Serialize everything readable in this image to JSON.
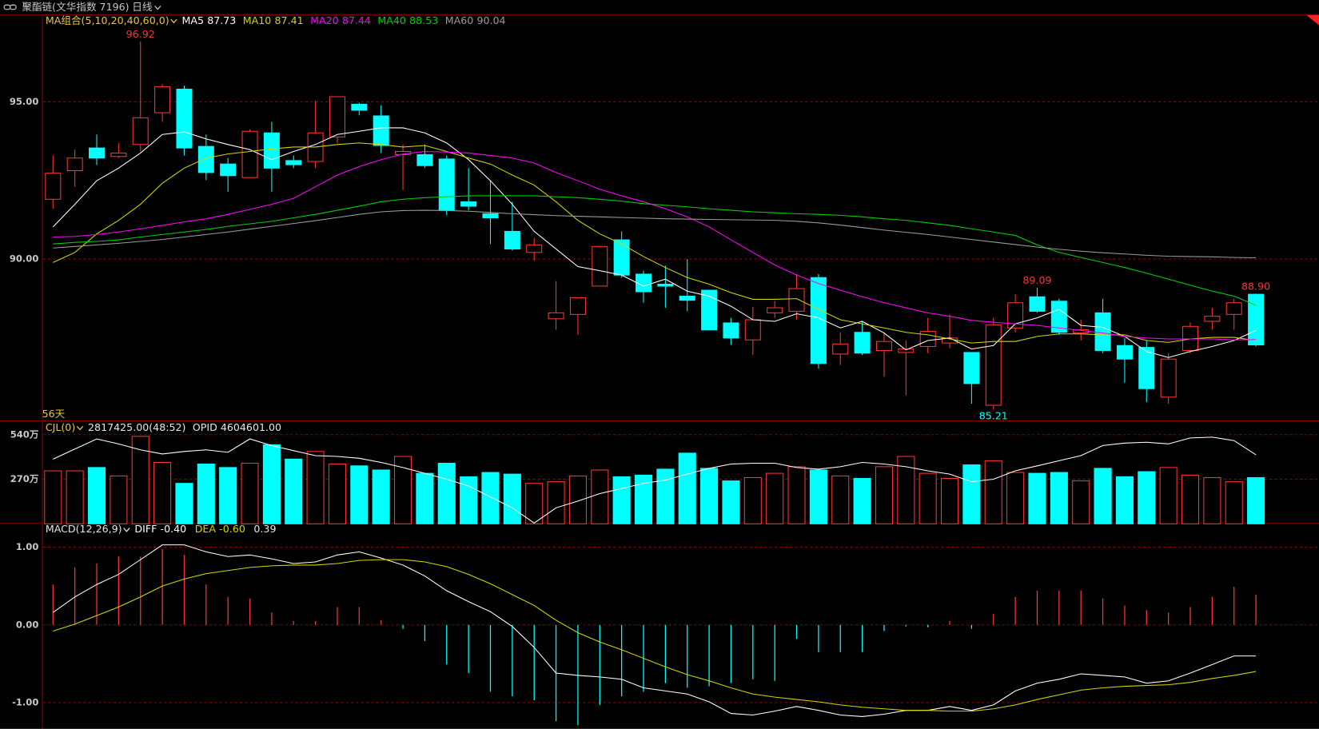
{
  "header": {
    "title": "聚酯链(文华指数 7196)",
    "period": "日线"
  },
  "chart_data": [
    {
      "type": "candlestick",
      "indicator_label": "MA组合(5,10,20,40,60,0)",
      "span_label": "56天",
      "up_color": "#ff3232",
      "down_color": "#00ffff",
      "open": [
        91.9,
        92.81,
        93.53,
        93.26,
        93.64,
        94.65,
        95.4,
        93.58,
        93.02,
        92.59,
        94.01,
        93.13,
        93.1,
        93.88,
        94.92,
        94.55,
        93.32,
        93.32,
        93.18,
        91.82,
        91.44,
        90.88,
        90.21,
        88.1,
        88.24,
        89.14,
        90.61,
        89.52,
        89.2,
        88.82,
        89.01,
        87.97,
        87.43,
        88.29,
        88.34,
        89.41,
        86.98,
        87.67,
        87.09,
        87.03,
        87.22,
        87.33,
        87.03,
        85.35,
        87.81,
        88.8,
        88.66,
        87.65,
        88.29,
        87.25,
        87.19,
        85.61,
        87.09,
        88.02,
        88.24,
        88.88
      ],
      "high": [
        93.29,
        93.48,
        93.96,
        93.69,
        96.92,
        95.56,
        95.51,
        93.96,
        93.21,
        94.12,
        94.36,
        93.29,
        95.03,
        95.16,
        94.97,
        94.89,
        93.64,
        93.64,
        93.29,
        92.89,
        92.49,
        91.82,
        90.67,
        89.3,
        88.77,
        90.4,
        90.88,
        89.63,
        89.79,
        90.0,
        89.01,
        88.13,
        88.48,
        88.66,
        89.52,
        89.52,
        87.67,
        88.02,
        87.67,
        87.41,
        88.13,
        88.24,
        87.03,
        88.13,
        88.88,
        89.09,
        88.74,
        88.07,
        88.74,
        87.49,
        87.41,
        87.01,
        87.99,
        88.45,
        88.74,
        88.9
      ],
      "low": [
        91.6,
        92.3,
        92.99,
        93.21,
        93.42,
        94.36,
        93.29,
        92.51,
        92.14,
        92.59,
        92.14,
        92.89,
        92.89,
        93.69,
        94.57,
        93.37,
        92.19,
        92.89,
        91.39,
        91.55,
        90.48,
        90.27,
        89.95,
        87.75,
        87.59,
        89.14,
        89.41,
        88.61,
        88.45,
        88.34,
        87.75,
        87.27,
        86.95,
        88.13,
        88.07,
        86.52,
        86.63,
        86.95,
        86.26,
        85.67,
        87.01,
        87.17,
        85.4,
        85.21,
        87.67,
        88.29,
        87.59,
        87.41,
        87.01,
        86.07,
        85.45,
        85.4,
        87.01,
        87.75,
        87.75,
        87.22
      ],
      "close": [
        92.73,
        93.21,
        93.21,
        93.37,
        94.49,
        95.48,
        93.53,
        92.75,
        92.65,
        94.06,
        92.89,
        93.0,
        94.01,
        95.16,
        94.73,
        93.61,
        93.42,
        92.97,
        91.55,
        91.68,
        91.31,
        90.32,
        90.45,
        88.29,
        88.77,
        90.4,
        89.49,
        88.96,
        89.14,
        88.69,
        87.75,
        87.49,
        88.07,
        88.45,
        89.06,
        86.68,
        87.3,
        87.01,
        87.38,
        87.14,
        87.7,
        87.49,
        86.04,
        87.91,
        88.61,
        88.34,
        87.67,
        87.75,
        87.09,
        86.82,
        85.88,
        86.82,
        87.86,
        88.18,
        88.61,
        87.27
      ],
      "high_labels": [
        null,
        null,
        null,
        null,
        "96.92",
        null,
        null,
        null,
        null,
        null,
        null,
        null,
        null,
        null,
        null,
        null,
        null,
        null,
        null,
        null,
        null,
        null,
        null,
        null,
        null,
        null,
        null,
        null,
        null,
        null,
        null,
        null,
        null,
        null,
        null,
        null,
        null,
        null,
        null,
        null,
        null,
        null,
        null,
        null,
        null,
        "89.09",
        null,
        null,
        null,
        null,
        null,
        null,
        null,
        null,
        null,
        "88.90"
      ],
      "low_labels": [
        null,
        null,
        null,
        null,
        null,
        null,
        null,
        null,
        null,
        null,
        null,
        null,
        null,
        null,
        null,
        null,
        null,
        null,
        null,
        null,
        null,
        null,
        null,
        null,
        null,
        null,
        null,
        null,
        null,
        null,
        null,
        null,
        null,
        null,
        null,
        null,
        null,
        null,
        null,
        null,
        null,
        null,
        null,
        "85.21",
        null,
        null,
        null,
        null,
        null,
        null,
        null,
        null,
        null,
        null,
        null,
        null
      ],
      "series": [
        {
          "name": "MA5",
          "color": "#ffffff",
          "values": [
            91.02,
            91.74,
            92.49,
            92.89,
            93.37,
            93.96,
            94.04,
            93.82,
            93.64,
            93.48,
            93.16,
            93.42,
            93.64,
            93.96,
            94.06,
            94.17,
            94.17,
            94.01,
            93.69,
            93.16,
            92.49,
            91.74,
            90.88,
            90.32,
            89.76,
            89.63,
            89.49,
            89.14,
            89.36,
            88.98,
            88.82,
            88.5,
            88.07,
            88.02,
            88.26,
            88.13,
            87.81,
            88.02,
            87.65,
            87.11,
            87.41,
            87.49,
            87.14,
            87.25,
            87.94,
            88.13,
            88.4,
            87.89,
            87.83,
            87.54,
            87.06,
            86.87,
            87.06,
            87.22,
            87.41,
            87.73
          ]
        },
        {
          "name": "MA10",
          "color": "#d4d400",
          "values": [
            89.89,
            90.21,
            90.8,
            91.23,
            91.74,
            92.41,
            92.89,
            93.21,
            93.34,
            93.42,
            93.5,
            93.56,
            93.56,
            93.64,
            93.69,
            93.64,
            93.56,
            93.61,
            93.42,
            93.21,
            93.02,
            92.67,
            92.35,
            91.82,
            91.23,
            90.8,
            90.48,
            90.08,
            89.73,
            89.41,
            89.2,
            88.93,
            88.72,
            88.72,
            88.74,
            88.4,
            88.07,
            87.94,
            87.81,
            87.67,
            87.59,
            87.46,
            87.33,
            87.38,
            87.38,
            87.54,
            87.62,
            87.62,
            87.59,
            87.59,
            87.41,
            87.35,
            87.46,
            87.51,
            87.51,
            87.41
          ]
        },
        {
          "name": "MA20",
          "color": "#ff00ff",
          "values": [
            90.7,
            90.72,
            90.78,
            90.86,
            90.96,
            91.07,
            91.18,
            91.28,
            91.42,
            91.58,
            91.74,
            91.93,
            92.3,
            92.67,
            92.94,
            93.16,
            93.34,
            93.42,
            93.4,
            93.37,
            93.29,
            93.21,
            93.05,
            92.75,
            92.49,
            92.22,
            92.01,
            91.82,
            91.6,
            91.34,
            91.02,
            90.61,
            90.21,
            89.81,
            89.49,
            89.22,
            89.01,
            88.8,
            88.61,
            88.45,
            88.29,
            88.18,
            88.05,
            87.99,
            87.94,
            87.89,
            87.81,
            87.73,
            87.65,
            87.54,
            87.49,
            87.46,
            87.46,
            87.46,
            87.43,
            87.44
          ]
        },
        {
          "name": "MA40",
          "color": "#00d000",
          "values": [
            90.48,
            90.53,
            90.56,
            90.61,
            90.7,
            90.78,
            90.86,
            90.94,
            91.04,
            91.12,
            91.2,
            91.31,
            91.42,
            91.55,
            91.68,
            91.82,
            91.9,
            91.95,
            91.98,
            92.01,
            92.01,
            92.01,
            92.01,
            91.98,
            91.95,
            91.9,
            91.84,
            91.76,
            91.71,
            91.66,
            91.6,
            91.55,
            91.5,
            91.47,
            91.44,
            91.42,
            91.39,
            91.34,
            91.28,
            91.23,
            91.15,
            91.07,
            90.96,
            90.86,
            90.75,
            90.45,
            90.21,
            90.05,
            89.89,
            89.73,
            89.55,
            89.36,
            89.17,
            88.98,
            88.82,
            88.53
          ]
        },
        {
          "name": "MA60",
          "color": "#9a9a9a",
          "values": [
            90.35,
            90.4,
            90.45,
            90.5,
            90.56,
            90.62,
            90.7,
            90.78,
            90.86,
            90.95,
            91.04,
            91.13,
            91.22,
            91.32,
            91.42,
            91.5,
            91.54,
            91.55,
            91.54,
            91.52,
            91.48,
            91.44,
            91.41,
            91.38,
            91.36,
            91.34,
            91.32,
            91.3,
            91.28,
            91.27,
            91.26,
            91.25,
            91.24,
            91.23,
            91.2,
            91.15,
            91.08,
            91.0,
            90.92,
            90.85,
            90.78,
            90.7,
            90.62,
            90.54,
            90.46,
            90.38,
            90.31,
            90.25,
            90.2,
            90.16,
            90.12,
            90.09,
            90.08,
            90.07,
            90.05,
            90.04
          ]
        }
      ],
      "ylim": [
        84.87,
        97.78
      ],
      "yticks": [
        {
          "value": 90,
          "label": "90.00"
        },
        {
          "value": 95,
          "label": "95.00"
        }
      ],
      "grid": true
    },
    {
      "type": "bar",
      "title": "CJL(0)",
      "readouts": [
        "2817425.00(48:52)",
        "OPID 4604601.00"
      ],
      "values": [
        321,
        321,
        341,
        290,
        530,
        372,
        245,
        362,
        341,
        367,
        479,
        392,
        438,
        362,
        351,
        326,
        408,
        306,
        367,
        285,
        311,
        301,
        245,
        255,
        290,
        326,
        285,
        295,
        331,
        428,
        336,
        260,
        280,
        306,
        346,
        326,
        290,
        275,
        346,
        408,
        306,
        275,
        357,
        382,
        311,
        306,
        311,
        260,
        336,
        285,
        316,
        341,
        295,
        280,
        255,
        280
      ],
      "series": [
        {
          "color": "#ffffff",
          "values": [
            392,
            453,
            514,
            484,
            448,
            423,
            438,
            448,
            433,
            514,
            474,
            443,
            413,
            408,
            397,
            372,
            341,
            306,
            270,
            229,
            163,
            97,
            5,
            97,
            138,
            183,
            214,
            245,
            265,
            301,
            336,
            362,
            367,
            367,
            341,
            331,
            346,
            372,
            362,
            346,
            321,
            301,
            255,
            270,
            321,
            351,
            382,
            413,
            474,
            489,
            494,
            484,
            520,
            525,
            504,
            418
          ]
        }
      ],
      "ylim": [
        0,
        616
      ],
      "yticks": [
        {
          "value": 270,
          "label": "270万"
        },
        {
          "value": 540,
          "label": "540万"
        }
      ],
      "grid": true
    },
    {
      "type": "macd",
      "title": "MACD(12,26,9)",
      "series": [
        {
          "name": "DIFF",
          "color": "#ffffff",
          "last_label": "-0.40",
          "values": [
            0.16,
            0.36,
            0.52,
            0.65,
            0.84,
            1.03,
            1.03,
            0.94,
            0.88,
            0.9,
            0.85,
            0.79,
            0.81,
            0.9,
            0.94,
            0.86,
            0.77,
            0.63,
            0.44,
            0.3,
            0.17,
            -0.02,
            -0.29,
            -0.62,
            -0.65,
            -0.67,
            -0.7,
            -0.81,
            -0.85,
            -0.89,
            -0.99,
            -1.14,
            -1.16,
            -1.11,
            -1.05,
            -1.1,
            -1.16,
            -1.18,
            -1.15,
            -1.1,
            -1.1,
            -1.05,
            -1.1,
            -1.03,
            -0.85,
            -0.75,
            -0.7,
            -0.63,
            -0.65,
            -0.67,
            -0.75,
            -0.72,
            -0.62,
            -0.51,
            -0.4,
            -0.4
          ]
        },
        {
          "name": "DEA",
          "color": "#d4d400",
          "last_label": "-0.60",
          "values": [
            -0.08,
            0.01,
            0.12,
            0.23,
            0.36,
            0.5,
            0.59,
            0.66,
            0.7,
            0.74,
            0.76,
            0.77,
            0.77,
            0.79,
            0.83,
            0.84,
            0.84,
            0.81,
            0.75,
            0.65,
            0.53,
            0.39,
            0.25,
            0.06,
            -0.1,
            -0.22,
            -0.32,
            -0.43,
            -0.54,
            -0.64,
            -0.72,
            -0.81,
            -0.89,
            -0.93,
            -0.96,
            -0.99,
            -1.03,
            -1.06,
            -1.08,
            -1.1,
            -1.1,
            -1.11,
            -1.11,
            -1.08,
            -1.03,
            -0.96,
            -0.9,
            -0.84,
            -0.81,
            -0.79,
            -0.78,
            -0.77,
            -0.74,
            -0.69,
            -0.65,
            -0.6
          ]
        }
      ],
      "histogram": {
        "up_color": "#ff3232",
        "down_color": "#00ffff",
        "values": [
          0.52,
          0.74,
          0.79,
          0.88,
          0.88,
          0.98,
          0.9,
          0.52,
          0.36,
          0.34,
          0.16,
          0.05,
          0.05,
          0.23,
          0.23,
          0.06,
          -0.05,
          -0.21,
          -0.51,
          -0.62,
          -0.86,
          -0.92,
          -0.97,
          -1.24,
          -1.29,
          -1.03,
          -0.92,
          -0.86,
          -0.75,
          -0.81,
          -0.79,
          -0.75,
          -0.7,
          -0.72,
          -0.18,
          -0.35,
          -0.35,
          -0.35,
          -0.08,
          -0.02,
          -0.03,
          0.05,
          -0.05,
          0.14,
          0.36,
          0.44,
          0.44,
          0.44,
          0.34,
          0.25,
          0.19,
          0.16,
          0.23,
          0.36,
          0.49,
          0.39
        ]
      },
      "ylim": [
        -1.34,
        1.29
      ],
      "yticks": [
        {
          "value": -1,
          "label": "-1.00"
        },
        {
          "value": 0,
          "label": "0.00"
        },
        {
          "value": 1,
          "label": "1.00"
        }
      ],
      "grid": true
    }
  ]
}
